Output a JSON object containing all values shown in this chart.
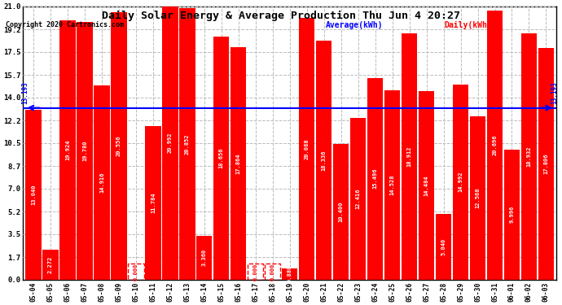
{
  "title": "Daily Solar Energy & Average Production Thu Jun 4 20:27",
  "copyright": "Copyright 2020 Cartronics.com",
  "average_label": "Average(kWh)",
  "daily_label": "Daily(kWh)",
  "average_value": 13.193,
  "categories": [
    "05-04",
    "05-05",
    "05-06",
    "05-07",
    "05-08",
    "05-09",
    "05-10",
    "05-11",
    "05-12",
    "05-13",
    "05-14",
    "05-15",
    "05-16",
    "05-17",
    "05-18",
    "05-19",
    "05-20",
    "05-21",
    "05-22",
    "05-23",
    "05-24",
    "05-25",
    "05-26",
    "05-27",
    "05-28",
    "05-29",
    "05-30",
    "05-31",
    "06-01",
    "06-02",
    "06-03"
  ],
  "values": [
    13.04,
    2.272,
    19.924,
    19.78,
    14.916,
    20.556,
    0.0,
    11.784,
    20.992,
    20.852,
    3.36,
    18.656,
    17.864,
    0.0,
    0.0,
    0.88,
    20.088,
    18.336,
    10.4,
    12.416,
    15.496,
    14.528,
    18.912,
    14.484,
    5.04,
    14.992,
    12.568,
    20.696,
    9.996,
    18.932,
    17.806
  ],
  "bar_color": "#ff0000",
  "avg_line_color": "#0000ff",
  "avg_text_color": "#0000ff",
  "avg_label_color": "#0000ff",
  "daily_label_color": "#ff0000",
  "title_color": "#000000",
  "copyright_color": "#000000",
  "bg_color": "#ffffff",
  "plot_bg_color": "#ffffff",
  "grid_color": "#bbbbbb",
  "bar_text_color": "#ffffff",
  "yticks": [
    0.0,
    1.7,
    3.5,
    5.2,
    7.0,
    8.7,
    10.5,
    12.2,
    14.0,
    15.7,
    17.5,
    19.2,
    21.0
  ],
  "ylim": [
    0.0,
    21.0
  ],
  "avg_annotation": "13.193"
}
